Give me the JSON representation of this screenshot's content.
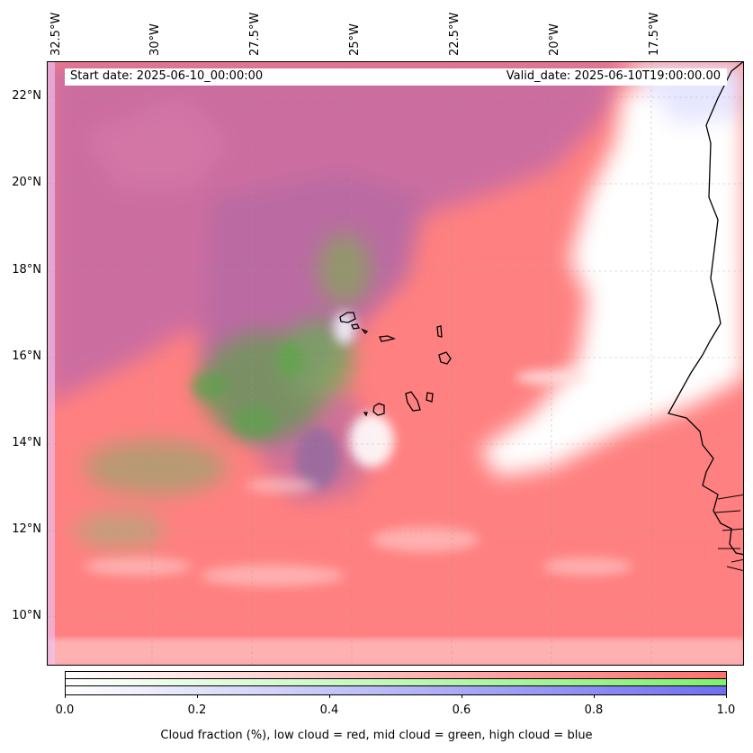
{
  "map": {
    "start_date": "Start date: 2025-06-10_00:00:00",
    "valid_date": "Valid_date: 2025-06-10T19:00:00.00",
    "lon_labels": [
      "32.5°W",
      "30°W",
      "27.5°W",
      "25°W",
      "22.5°W",
      "20°W",
      "17.5°W"
    ],
    "lat_labels": [
      "22°N",
      "20°N",
      "18°N",
      "16°N",
      "14°N",
      "12°N",
      "10°N"
    ],
    "extent": {
      "lon_min": -32.6,
      "lon_max": -15.4,
      "lat_min": 8.9,
      "lat_max": 22.8
    },
    "colors": {
      "low_cloud": "#ff7f7f",
      "mid_cloud": "#7fef6f",
      "high_cloud": "#7f7fef",
      "coast": "#000000"
    }
  },
  "colorbar": {
    "tick_labels": [
      "0.0",
      "0.2",
      "0.4",
      "0.6",
      "0.8",
      "1.0"
    ],
    "caption": "Cloud fraction (%), low cloud = red, mid cloud = green, high cloud = blue"
  }
}
